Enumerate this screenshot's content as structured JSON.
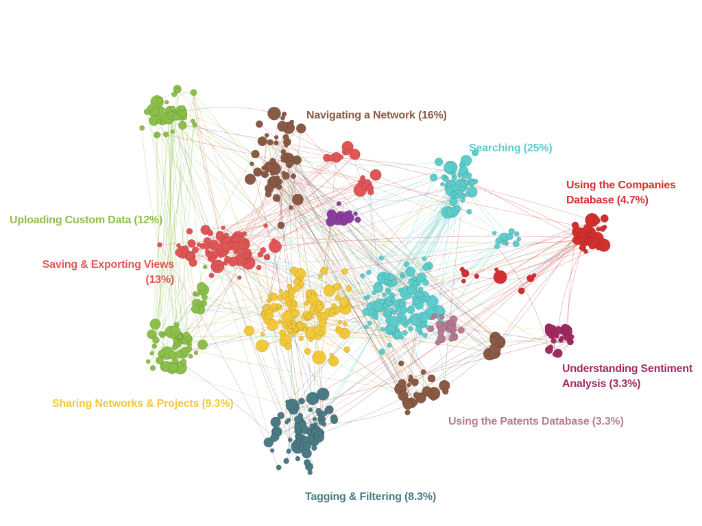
{
  "clusters": [
    {
      "id": "navigating",
      "label": "Navigating a Network (16%)",
      "color": "#8a5a44"
    },
    {
      "id": "searching",
      "label": "Searching (25%)",
      "color": "#5ccccc"
    },
    {
      "id": "companies",
      "label_lines": [
        "Using the Companies",
        "Database (4.7%)"
      ],
      "color": "#d42f2f"
    },
    {
      "id": "uploading",
      "label": "Uploading Custom Data (12%)",
      "color": "#8cbf4a"
    },
    {
      "id": "saving",
      "label_lines": [
        "Saving & Exporting Views",
        "(13%)"
      ],
      "color": "#e05555"
    },
    {
      "id": "sentiment",
      "label_lines": [
        "Understanding Sentiment",
        "Analysis (3.3%)"
      ],
      "color": "#a12a62"
    },
    {
      "id": "sharing",
      "label": "Sharing Networks & Projects (9.3%)",
      "color": "#f2c83a"
    },
    {
      "id": "patents",
      "label": "Using the Patents Database (3.3%)",
      "color": "#b87b95"
    },
    {
      "id": "tagging",
      "label": "Tagging & Filtering (8.3%)",
      "color": "#4a7a84"
    },
    {
      "id": "purple",
      "color": "#8c3fa0"
    }
  ]
}
